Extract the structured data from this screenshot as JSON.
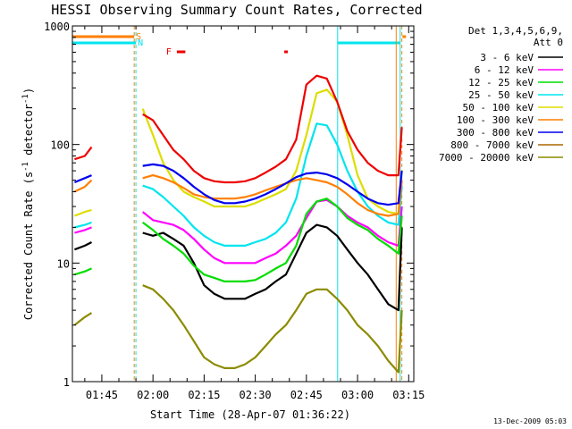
{
  "chart_data": {
    "type": "line",
    "title": "HESSI Observing Summary Count Rates, Corrected",
    "xlabel": "Start Time (28-Apr-07 01:36:22)",
    "ylabel": "Corrected Count Rate (s⁻¹ detector⁻¹)",
    "ylabel_main": "Corrected Count Rate (s",
    "ylabel_sup1": "-1",
    "ylabel_mid": " detector",
    "ylabel_sup2": "-1",
    "ylabel_end": ")",
    "yscale": "log",
    "ylim": [
      1,
      1000
    ],
    "xlim": [
      "01:36:22",
      "03:16:30"
    ],
    "xticks": [
      "01:45",
      "02:00",
      "02:15",
      "02:30",
      "02:45",
      "03:00",
      "03:15"
    ],
    "yticks": [
      "1",
      "10",
      "100",
      "1000"
    ],
    "grid": false,
    "legend_placement": "right",
    "footer_date": "13-Dec-2009 05:03",
    "legend_header": [
      "Det 1,3,4,5,6,9,",
      "Att 0"
    ],
    "flags": [
      {
        "label": "S",
        "color": "#ff7f00"
      },
      {
        "label": "N",
        "color": "#00e5ee"
      },
      {
        "label": "F",
        "color": "#ee0000"
      }
    ],
    "region_lines": [
      {
        "time": "01:54:30",
        "color": "#ff7f00",
        "dashed": true
      },
      {
        "time": "01:55:00",
        "color": "#00e5ee",
        "dashed": true
      },
      {
        "time": "02:54:10",
        "color": "#00e5ee",
        "dashed": false
      },
      {
        "time": "03:11:20",
        "color": "#ff7f00",
        "dashed": false
      },
      {
        "time": "03:12:30",
        "color": "#00e5ee",
        "dashed": false
      },
      {
        "time": "03:13:00",
        "color": "#ff7f00",
        "dashed": true
      }
    ],
    "flag_bars": [
      {
        "label": "S",
        "color": "#ff7f00",
        "ranges": [
          [
            "01:36:22",
            "01:54:30"
          ],
          [
            "03:13:10",
            "03:13:40"
          ]
        ]
      },
      {
        "label": "N",
        "color": "#00e5ee",
        "ranges": [
          [
            "01:36:22",
            "01:55:00"
          ],
          [
            "02:54:10",
            "03:12:30"
          ]
        ]
      },
      {
        "label": "F",
        "color": "#ee0000",
        "ranges": [
          [
            "02:07:00",
            "02:09:30"
          ],
          [
            "02:38:30",
            "02:39:30"
          ]
        ]
      }
    ],
    "data_gaps": [
      [
        "01:42:50",
        "01:54:30"
      ],
      [
        "02:54:10",
        "03:12:30"
      ]
    ],
    "x": [
      "01:37",
      "01:40",
      "01:42",
      "01:55",
      "01:57",
      "02:00",
      "02:03",
      "02:06",
      "02:09",
      "02:12",
      "02:15",
      "02:18",
      "02:21",
      "02:24",
      "02:27",
      "02:30",
      "02:33",
      "02:36",
      "02:39",
      "02:42",
      "02:45",
      "02:48",
      "02:51",
      "02:54",
      "02:57",
      "03:00",
      "03:03",
      "03:06",
      "03:09",
      "03:12",
      "03:13"
    ],
    "series": [
      {
        "name": "3 - 6 keV",
        "color": "#000000",
        "values": [
          13,
          14,
          15,
          null,
          18,
          17,
          18,
          16,
          14,
          10,
          6.5,
          5.5,
          5,
          5,
          5,
          5.5,
          6,
          7,
          8,
          12,
          18,
          21,
          20,
          17,
          13,
          10,
          8,
          6,
          4.5,
          4,
          20
        ]
      },
      {
        "name": "6 - 12 keV",
        "color": "#ff00ff",
        "values": [
          18,
          19,
          20,
          null,
          27,
          23,
          22,
          21,
          19,
          16,
          13,
          11,
          10,
          10,
          10,
          10,
          11,
          12,
          14,
          17,
          24,
          33,
          34,
          30,
          25,
          22,
          20,
          17,
          15,
          14,
          30
        ]
      },
      {
        "name": "12 - 25 keV",
        "color": "#00dd00",
        "values": [
          8,
          8.5,
          9,
          null,
          22,
          19,
          16,
          14,
          12,
          9.5,
          8,
          7.5,
          7,
          7,
          7,
          7.2,
          8,
          9,
          10,
          14,
          26,
          33,
          35,
          30,
          24,
          21,
          19,
          16,
          14,
          12,
          25
        ]
      },
      {
        "name": "25 - 50 keV",
        "color": "#00e5ee",
        "values": [
          20,
          21,
          22,
          null,
          45,
          42,
          36,
          30,
          25,
          20,
          17,
          15,
          14,
          14,
          14,
          15,
          16,
          18,
          22,
          35,
          80,
          150,
          145,
          100,
          60,
          40,
          30,
          25,
          22,
          21,
          45
        ]
      },
      {
        "name": "50 - 100 keV",
        "color": "#dddd00",
        "values": [
          25,
          27,
          28,
          null,
          200,
          120,
          70,
          50,
          40,
          36,
          33,
          30,
          30,
          30,
          30,
          32,
          35,
          38,
          42,
          60,
          120,
          270,
          290,
          230,
          120,
          55,
          35,
          30,
          27,
          26,
          60
        ]
      },
      {
        "name": "100 - 300 keV",
        "color": "#ff7f00",
        "values": [
          40,
          44,
          50,
          null,
          52,
          55,
          52,
          48,
          43,
          38,
          36,
          35,
          35,
          35,
          36,
          38,
          41,
          44,
          47,
          50,
          52,
          50,
          48,
          44,
          38,
          32,
          28,
          26,
          25,
          26,
          50
        ]
      },
      {
        "name": "300 - 800 keV",
        "color": "#0000ee",
        "values": [
          48,
          52,
          55,
          null,
          66,
          68,
          66,
          60,
          52,
          44,
          38,
          34,
          32,
          32,
          33,
          35,
          38,
          42,
          47,
          53,
          57,
          58,
          56,
          52,
          46,
          40,
          35,
          32,
          31,
          32,
          60
        ]
      },
      {
        "name": "800 - 7000 keV",
        "color": "#aa6600",
        "values": [
          null,
          null,
          null,
          null,
          null,
          null,
          null,
          null,
          null,
          null,
          null,
          null,
          null,
          null,
          null,
          null,
          null,
          null,
          null,
          null,
          null,
          null,
          null,
          null,
          null,
          null,
          null,
          null,
          null,
          null,
          null
        ]
      },
      {
        "name": "7000 - 20000 keV",
        "color": "#8b8b00",
        "values": [
          3,
          3.5,
          3.8,
          null,
          6.5,
          6,
          5,
          4,
          3,
          2.2,
          1.6,
          1.4,
          1.3,
          1.3,
          1.4,
          1.6,
          2,
          2.5,
          3,
          4,
          5.5,
          6,
          6,
          5,
          4,
          3,
          2.5,
          2,
          1.5,
          1.2,
          4
        ]
      },
      {
        "name": "3 - 6 keV",
        "color": "#ee0000",
        "role": "top-red-trace",
        "values": [
          75,
          80,
          95,
          null,
          180,
          160,
          120,
          90,
          75,
          60,
          52,
          49,
          48,
          48,
          49,
          52,
          58,
          65,
          75,
          110,
          320,
          380,
          360,
          230,
          130,
          90,
          70,
          60,
          55,
          55,
          140
        ]
      }
    ]
  }
}
